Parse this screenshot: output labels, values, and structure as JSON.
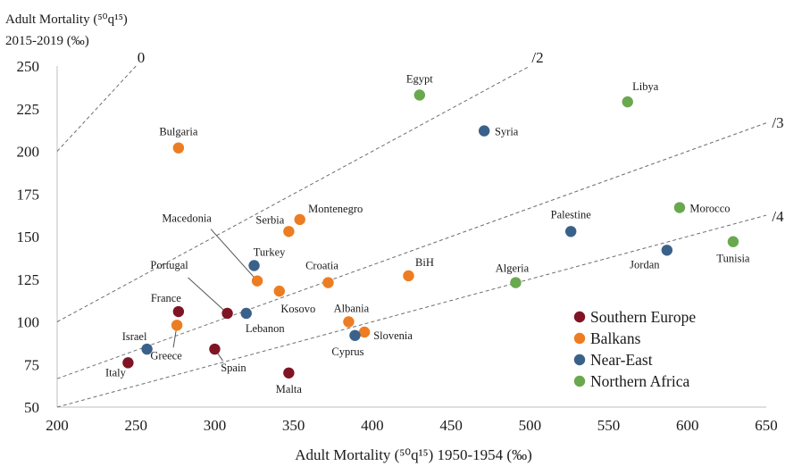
{
  "chart_data": {
    "type": "scatter",
    "ylabel_line1": "Adult Mortality (⁵⁰q¹⁵)",
    "ylabel_line2": "2015-2019 (‰)",
    "xlabel": "Adult Mortality (⁵⁰q¹⁵) 1950-1954 (‰)",
    "xlim": [
      200,
      650
    ],
    "ylim": [
      50,
      250
    ],
    "x_ticks": [
      "200",
      "250",
      "300",
      "350",
      "400",
      "450",
      "500",
      "550",
      "600",
      "650"
    ],
    "y_ticks": [
      "50",
      "75",
      "100",
      "125",
      "150",
      "175",
      "200",
      "225",
      "250"
    ],
    "reference_lines": [
      {
        "label": "0",
        "ratio": 1
      },
      {
        "label": "/2",
        "ratio": 0.5
      },
      {
        "label": "/3",
        "ratio": 0.3333
      },
      {
        "label": "/4",
        "ratio": 0.25
      }
    ],
    "series": [
      {
        "name": "Southern Europe",
        "color": "#7f1424",
        "points": [
          {
            "label": "France",
            "x": 277,
            "y": 106
          },
          {
            "label": "Italy",
            "x": 245,
            "y": 76
          },
          {
            "label": "Spain",
            "x": 300,
            "y": 84
          },
          {
            "label": "Portugal",
            "x": 308,
            "y": 105
          },
          {
            "label": "Malta",
            "x": 347,
            "y": 70
          }
        ]
      },
      {
        "name": "Balkans",
        "color": "#ed7d22",
        "points": [
          {
            "label": "Bulgaria",
            "x": 277,
            "y": 202
          },
          {
            "label": "Greece",
            "x": 276,
            "y": 98
          },
          {
            "label": "Macedonia",
            "x": 327,
            "y": 124
          },
          {
            "label": "Serbia",
            "x": 347,
            "y": 153
          },
          {
            "label": "Montenegro",
            "x": 354,
            "y": 160
          },
          {
            "label": "Kosovo",
            "x": 341,
            "y": 118
          },
          {
            "label": "Croatia",
            "x": 372,
            "y": 123
          },
          {
            "label": "Albania",
            "x": 385,
            "y": 100
          },
          {
            "label": "Slovenia",
            "x": 395,
            "y": 94
          },
          {
            "label": "BiH",
            "x": 423,
            "y": 127
          }
        ]
      },
      {
        "name": "Near-East",
        "color": "#3a6189",
        "points": [
          {
            "label": "Israel",
            "x": 257,
            "y": 84
          },
          {
            "label": "Lebanon",
            "x": 320,
            "y": 105
          },
          {
            "label": "Turkey",
            "x": 325,
            "y": 133
          },
          {
            "label": "Cyprus",
            "x": 389,
            "y": 92
          },
          {
            "label": "Syria",
            "x": 471,
            "y": 212
          },
          {
            "label": "Palestine",
            "x": 526,
            "y": 153
          },
          {
            "label": "Jordan",
            "x": 587,
            "y": 142
          }
        ]
      },
      {
        "name": "Northern Africa",
        "color": "#6aa84f",
        "points": [
          {
            "label": "Egypt",
            "x": 430,
            "y": 233
          },
          {
            "label": "Algeria",
            "x": 491,
            "y": 123
          },
          {
            "label": "Libya",
            "x": 562,
            "y": 229
          },
          {
            "label": "Morocco",
            "x": 595,
            "y": 167
          },
          {
            "label": "Tunisia",
            "x": 629,
            "y": 147
          }
        ]
      }
    ],
    "legend_position": "bottom-right",
    "grid": "none"
  }
}
